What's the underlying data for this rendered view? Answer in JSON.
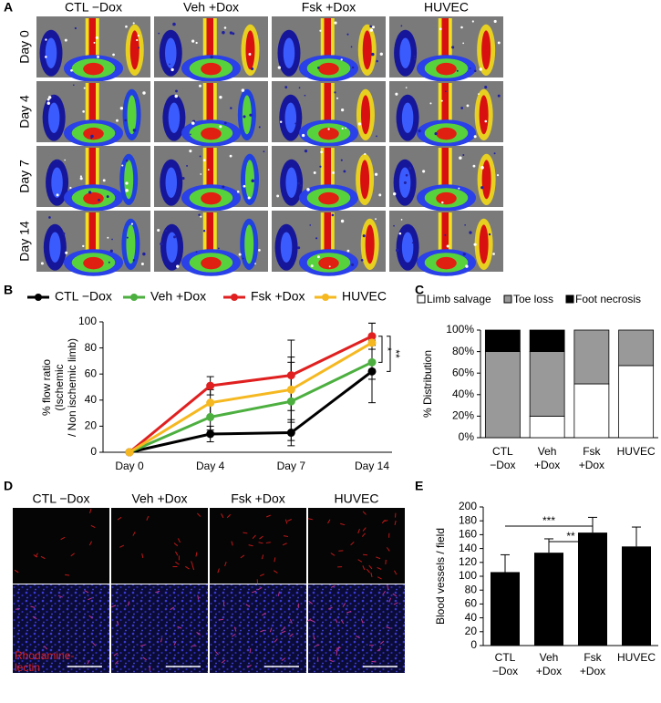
{
  "panel_a": {
    "letter": "A",
    "columns": [
      "CTL −Dox",
      "Veh +Dox",
      "Fsk +Dox",
      "HUVEC"
    ],
    "rows": [
      "Day 0",
      "Day 4",
      "Day 7",
      "Day 14"
    ]
  },
  "chart_data": [
    {
      "type": "line",
      "panel_label": "B",
      "categories": [
        "Day 0",
        "Day 4",
        "Day 7",
        "Day 14"
      ],
      "y_label": [
        "% flow ratio",
        "(Ischemic",
        "/ Non ischemic limb)"
      ],
      "ylim": [
        0,
        100
      ],
      "yticks": [
        0,
        20,
        40,
        60,
        80,
        100
      ],
      "series": [
        {
          "name": "CTL −Dox",
          "color": "#000000",
          "values": [
            0,
            14,
            15,
            62
          ],
          "errors": [
            0,
            6,
            10,
            24
          ]
        },
        {
          "name": "Veh +Dox",
          "color": "#4caf3f",
          "values": [
            0,
            27,
            39,
            69
          ],
          "errors": [
            0,
            10,
            30,
            13
          ]
        },
        {
          "name": "Fsk +Dox",
          "color": "#e02020",
          "values": [
            0,
            51,
            59,
            89
          ],
          "errors": [
            0,
            7,
            27,
            10
          ]
        },
        {
          "name": "HUVEC",
          "color": "#f5b820",
          "values": [
            0,
            38,
            48,
            84
          ],
          "errors": [
            0,
            10,
            25,
            15
          ]
        }
      ],
      "annotations": [
        "*",
        "**"
      ]
    },
    {
      "type": "stacked_bar",
      "panel_label": "C",
      "categories": [
        [
          "CTL",
          "−Dox"
        ],
        [
          "Veh",
          "+Dox"
        ],
        [
          "Fsk",
          "+Dox"
        ],
        [
          "HUVEC"
        ]
      ],
      "y_label": "% Distribution",
      "ylim": [
        0,
        100
      ],
      "yticks": [
        {
          "value": 0,
          "label": "0%"
        },
        {
          "value": 20,
          "label": "20%"
        },
        {
          "value": 40,
          "label": "40%"
        },
        {
          "value": 60,
          "label": "60%"
        },
        {
          "value": 80,
          "label": "80%"
        },
        {
          "value": 100,
          "label": "100%"
        }
      ],
      "series": [
        {
          "name": "Limb salvage",
          "color": "#ffffff",
          "values": [
            0,
            20,
            50,
            67
          ]
        },
        {
          "name": "Toe loss",
          "color": "#999999",
          "values": [
            80,
            60,
            50,
            33
          ]
        },
        {
          "name": "Foot necrosis",
          "color": "#000000",
          "values": [
            20,
            20,
            0,
            0
          ]
        }
      ]
    },
    {
      "type": "bar",
      "panel_label": "E",
      "categories": [
        [
          "CTL",
          "−Dox"
        ],
        [
          "Veh",
          "+Dox"
        ],
        [
          "Fsk",
          "+Dox"
        ],
        [
          "HUVEC"
        ]
      ],
      "y_label": "Blood vessels / field",
      "values": [
        106,
        134,
        163,
        143
      ],
      "errors": [
        25,
        20,
        22,
        28
      ],
      "color": "#000000",
      "ylim": [
        0,
        200
      ],
      "yticks": [
        0,
        20,
        40,
        60,
        80,
        100,
        120,
        140,
        160,
        180,
        200
      ],
      "annotations": [
        "***",
        "**"
      ]
    }
  ],
  "panel_d": {
    "letter": "D",
    "columns": [
      "CTL −Dox",
      "Veh +Dox",
      "Fsk +Dox",
      "HUVEC"
    ],
    "stain_label": [
      "Rhodamine-",
      "lectin"
    ]
  }
}
